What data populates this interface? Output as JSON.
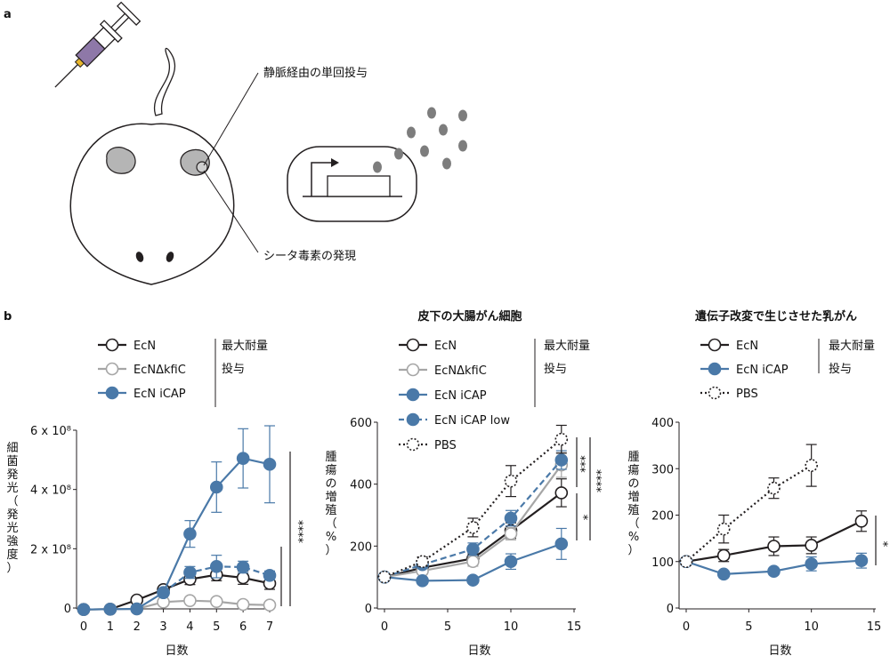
{
  "panel_a": {
    "letter": "a",
    "label_injection": "静脈経由の単回投与",
    "label_toxin": "シータ毒素の発現"
  },
  "panel_b": {
    "letter": "b"
  },
  "colors": {
    "ecn": "#231f20",
    "kfic": "#a6a6a6",
    "icap": "#4a79a8",
    "pbs": "#231f20"
  },
  "chart_data": [
    {
      "type": "line",
      "title": "",
      "xlabel": "日数",
      "ylabel": "細菌発光（発光強度）",
      "xlim": [
        0,
        7
      ],
      "ylim": [
        0,
        600000000
      ],
      "x_ticks": [
        "0",
        "1",
        "2",
        "3",
        "4",
        "5",
        "6",
        "7"
      ],
      "y_ticks": [
        {
          "value": 0,
          "label": "0"
        },
        {
          "value": 200000000,
          "label": "2 x 10⁸"
        },
        {
          "value": 400000000,
          "label": "4 x 10⁸"
        },
        {
          "value": 600000000,
          "label": "6 x 10⁸"
        }
      ],
      "legend_note": [
        "最大耐量",
        "投与"
      ],
      "significance": [
        "****"
      ],
      "series": [
        {
          "name": "EcN",
          "style": "solid",
          "marker": "open",
          "color": "#231f20",
          "x": [
            0,
            1,
            2,
            3,
            4,
            5,
            6,
            7
          ],
          "y": [
            -5000000,
            -4000000,
            27000000,
            62000000,
            97000000,
            112000000,
            102000000,
            83000000
          ],
          "err": [
            0,
            0,
            0,
            0,
            18000000,
            20000000,
            22000000,
            20000000
          ]
        },
        {
          "name": "EcNΔkfiC",
          "style": "solid",
          "marker": "open",
          "color": "#a6a6a6",
          "x": [
            0,
            1,
            2,
            3,
            4,
            5,
            6,
            7
          ],
          "y": [
            -5000000,
            -4000000,
            -3000000,
            20000000,
            25000000,
            22000000,
            12000000,
            10000000
          ],
          "err": [
            0,
            0,
            0,
            0,
            0,
            0,
            0,
            0
          ]
        },
        {
          "name": "EcN iCAP",
          "style": "solid",
          "marker": "filled",
          "color": "#4a79a8",
          "x": [
            0,
            1,
            2,
            3,
            4,
            5,
            6,
            7
          ],
          "y": [
            -5000000,
            -4000000,
            -3000000,
            52000000,
            250000000,
            408000000,
            505000000,
            485000000
          ],
          "err": [
            0,
            0,
            0,
            0,
            45000000,
            85000000,
            100000000,
            130000000
          ]
        },
        {
          "name": "",
          "style": "dashed",
          "marker": "filled",
          "color": "#4a79a8",
          "x": [
            3,
            4,
            5,
            6,
            7
          ],
          "y": [
            52000000,
            120000000,
            140000000,
            138000000,
            110000000
          ],
          "err": [
            0,
            20000000,
            38000000,
            20000000,
            15000000
          ]
        }
      ]
    },
    {
      "type": "line",
      "title": "皮下の大腸がん細胞",
      "xlabel": "日数",
      "ylabel": "腫瘍の増殖（%）",
      "xlim": [
        0,
        15
      ],
      "ylim": [
        0,
        600
      ],
      "x_ticks": [
        "0",
        "5",
        "10",
        "15"
      ],
      "y_ticks": [
        {
          "value": 0,
          "label": "0"
        },
        {
          "value": 200,
          "label": "200"
        },
        {
          "value": 400,
          "label": "400"
        },
        {
          "value": 600,
          "label": "600"
        }
      ],
      "legend_note": [
        "最大耐量",
        "投与"
      ],
      "significance": [
        "***",
        "****",
        "*"
      ],
      "series": [
        {
          "name": "EcN",
          "style": "solid",
          "marker": "open",
          "color": "#231f20",
          "x": [
            0,
            3,
            7,
            10,
            14
          ],
          "y": [
            100,
            130,
            160,
            250,
            372
          ],
          "err": [
            0,
            10,
            15,
            25,
            45
          ]
        },
        {
          "name": "EcNΔkfiC",
          "style": "solid",
          "marker": "open",
          "color": "#a6a6a6",
          "x": [
            0,
            3,
            7,
            10,
            14
          ],
          "y": [
            100,
            120,
            150,
            240,
            462
          ],
          "err": [
            0,
            10,
            15,
            20,
            40
          ]
        },
        {
          "name": "EcN iCAP",
          "style": "solid",
          "marker": "filled",
          "color": "#4a79a8",
          "x": [
            0,
            3,
            7,
            10,
            14
          ],
          "y": [
            100,
            88,
            90,
            150,
            207
          ],
          "err": [
            0,
            8,
            8,
            25,
            50
          ]
        },
        {
          "name": "EcN iCAP low",
          "style": "dashed",
          "marker": "filled",
          "color": "#4a79a8",
          "x": [
            0,
            3,
            7,
            10,
            14
          ],
          "y": [
            100,
            140,
            190,
            290,
            478
          ],
          "err": [
            0,
            12,
            20,
            25,
            30
          ]
        },
        {
          "name": "PBS",
          "style": "dotted",
          "marker": "open",
          "color": "#231f20",
          "x": [
            0,
            3,
            7,
            10,
            14
          ],
          "y": [
            100,
            150,
            260,
            410,
            545
          ],
          "err": [
            0,
            15,
            30,
            50,
            45
          ]
        }
      ]
    },
    {
      "type": "line",
      "title": "遺伝子改変で生じさせた乳がん",
      "xlabel": "日数",
      "ylabel": "腫瘍の増殖（%）",
      "xlim": [
        0,
        15
      ],
      "ylim": [
        0,
        400
      ],
      "x_ticks": [
        "0",
        "5",
        "10",
        "15"
      ],
      "y_ticks": [
        {
          "value": 0,
          "label": "0"
        },
        {
          "value": 100,
          "label": "100"
        },
        {
          "value": 200,
          "label": "200"
        },
        {
          "value": 300,
          "label": "300"
        },
        {
          "value": 400,
          "label": "400"
        }
      ],
      "legend_note": [
        "最大耐量",
        "投与"
      ],
      "significance": [
        "*"
      ],
      "series": [
        {
          "name": "EcN",
          "style": "solid",
          "marker": "open",
          "color": "#231f20",
          "x": [
            0,
            3,
            7,
            10,
            14
          ],
          "y": [
            100,
            113,
            133,
            135,
            187
          ],
          "err": [
            0,
            13,
            20,
            18,
            22
          ]
        },
        {
          "name": "EcN iCAP",
          "style": "solid",
          "marker": "filled",
          "color": "#4a79a8",
          "x": [
            0,
            3,
            7,
            10,
            14
          ],
          "y": [
            100,
            73,
            79,
            95,
            102
          ],
          "err": [
            0,
            5,
            6,
            15,
            16
          ]
        },
        {
          "name": "PBS",
          "style": "dotted",
          "marker": "open",
          "color": "#231f20",
          "x": [
            0,
            3,
            7,
            10
          ],
          "y": [
            100,
            170,
            258,
            307
          ],
          "err": [
            0,
            30,
            22,
            45
          ]
        }
      ]
    }
  ]
}
